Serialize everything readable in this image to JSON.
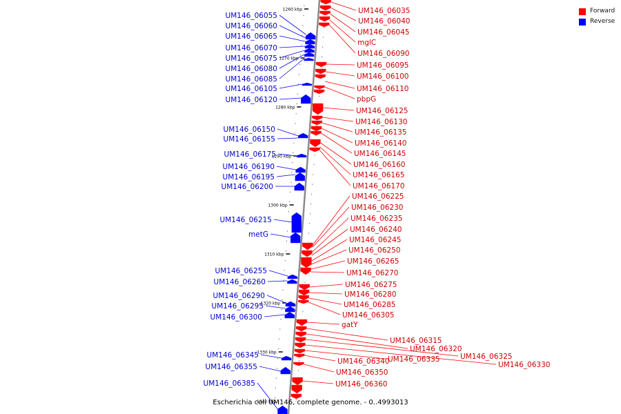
{
  "genome": {
    "title": "Escherichia coli UM146, complete genome. - 0..4993013"
  },
  "legend": [
    {
      "label": "Forward",
      "color": "#ff0000"
    },
    {
      "label": "Reverse",
      "color": "#0000ff"
    }
  ],
  "colors": {
    "forward": "#ff0000",
    "reverse": "#0000ff",
    "forward_label": "#cc0000",
    "reverse_label": "#0000cc",
    "axis": "#8a8a8a"
  },
  "ruler": {
    "unit": "kbp",
    "ticks": [
      "1260 kbp",
      "1270 kbp",
      "1280 kbp",
      "1290 kbp",
      "1300 kbp",
      "1310 kbp",
      "1320 kbp",
      "1330 kbp"
    ],
    "last_tick_partial": "1340 kbp"
  },
  "reverse_genes": [
    "UM146_06055",
    "UM146_06060",
    "UM146_06065",
    "UM146_06070",
    "UM146_06075",
    "UM146_06080",
    "UM146_06085",
    "UM146_06105",
    "UM146_06120",
    "UM146_06150",
    "UM146_06155",
    "UM146_06175",
    "UM146_06190",
    "UM146_06195",
    "UM146_06200",
    "UM146_06215",
    "metG",
    "UM146_06255",
    "UM146_06260",
    "UM146_06290",
    "UM146_06295",
    "UM146_06300",
    "UM146_06345",
    "UM146_06355",
    "UM146_06385"
  ],
  "forward_genes": [
    "UM146_06035",
    "UM146_06040",
    "UM146_06045",
    "mglC",
    "UM146_06090",
    "UM146_06095",
    "UM146_06100",
    "UM146_06110",
    "pbpG",
    "UM146_06125",
    "UM146_06130",
    "UM146_06135",
    "UM146_06140",
    "UM146_06145",
    "UM146_06160",
    "UM146_06165",
    "UM146_06170",
    "UM146_06225",
    "UM146_06230",
    "UM146_06235",
    "UM146_06240",
    "UM146_06245",
    "UM146_06250",
    "UM146_06265",
    "UM146_06270",
    "UM146_06275",
    "UM146_06280",
    "UM146_06285",
    "UM146_06305",
    "gatY",
    "UM146_06315",
    "UM146_06320",
    "UM146_06325",
    "UM146_06330",
    "UM146_06335",
    "UM146_06340",
    "UM146_06350",
    "UM146_06360"
  ]
}
